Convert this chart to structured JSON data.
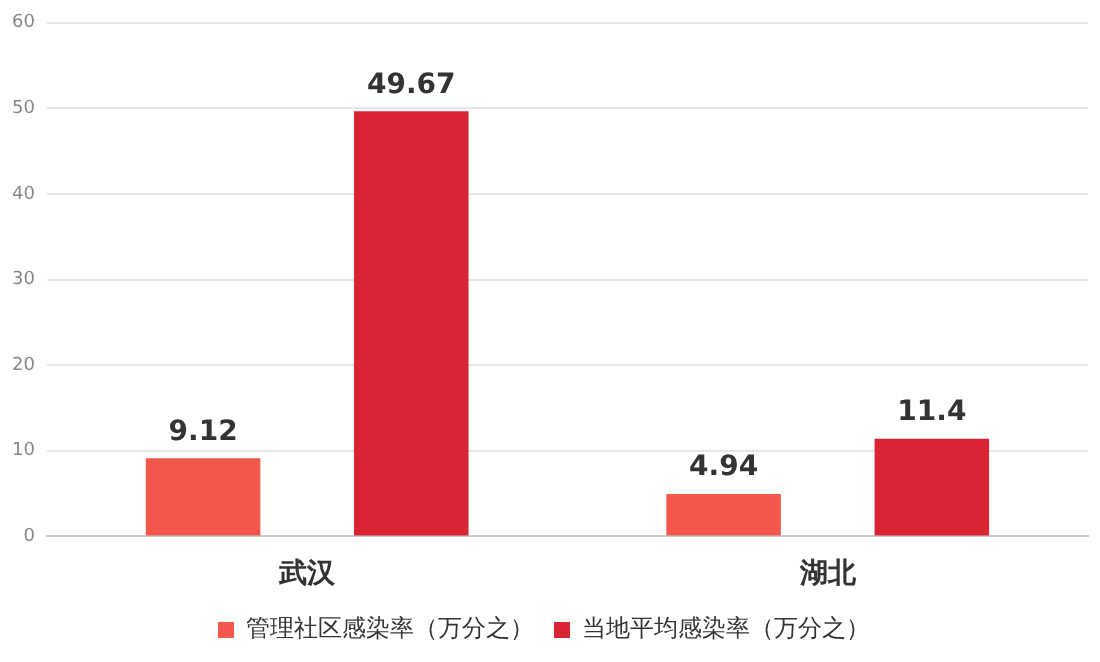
{
  "chart_data": {
    "type": "bar",
    "categories": [
      "武汉",
      "湖北"
    ],
    "series": [
      {
        "name": "管理社区感染率（万分之）",
        "color": "#f4574b",
        "values": [
          9.12,
          4.94
        ]
      },
      {
        "name": "当地平均感染率（万分之）",
        "color": "#d92533",
        "values": [
          49.67,
          11.4
        ]
      }
    ],
    "ylim": [
      0,
      60
    ],
    "yticks": [
      0,
      10,
      20,
      30,
      40,
      50,
      60
    ],
    "grid": "y",
    "legend": "bottom",
    "data_labels": true
  }
}
